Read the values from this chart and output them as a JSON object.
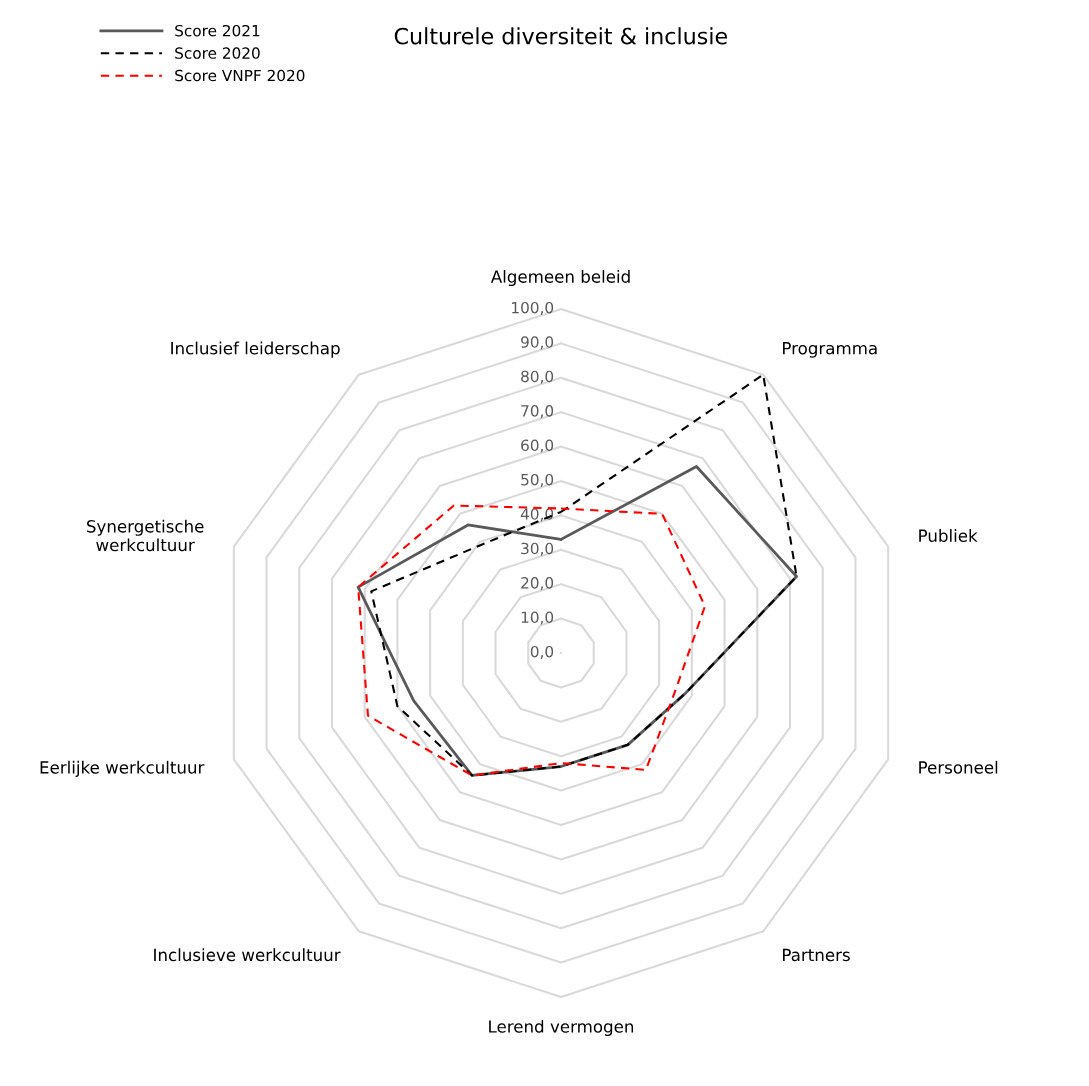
{
  "chart_data": {
    "type": "radar",
    "title": "Culturele diversiteit & inclusie",
    "categories": [
      "Algemeen beleid",
      "Programma",
      "Publiek",
      "Personeel",
      "Partners",
      "Lerend vermogen",
      "Inclusieve werkcultuur",
      "Eerlijke werkcultuur",
      "Synergetische werkcultuur",
      "Inclusief leiderschap"
    ],
    "series": [
      {
        "name": "Score 2021",
        "color": "#595959",
        "line_style": "solid",
        "values": [
          33,
          67,
          72,
          38,
          33,
          33,
          44,
          45,
          62,
          46
        ]
      },
      {
        "name": "Score 2020",
        "color": "#000000",
        "line_style": "dashed",
        "values": [
          41,
          100,
          72,
          38,
          33,
          33,
          44,
          50,
          58,
          39
        ]
      },
      {
        "name": "Score VNPF 2020",
        "color": "#ff0000",
        "line_style": "dashed",
        "values": [
          42,
          50,
          44,
          35,
          42,
          32,
          44,
          59,
          62,
          53
        ]
      }
    ],
    "ylim": [
      0,
      100
    ],
    "yticks": [
      {
        "value": 0,
        "label": "0,0"
      },
      {
        "value": 10,
        "label": "10,0"
      },
      {
        "value": 20,
        "label": "20,0"
      },
      {
        "value": 30,
        "label": "30,0"
      },
      {
        "value": 40,
        "label": "40,0"
      },
      {
        "value": 50,
        "label": "50,0"
      },
      {
        "value": 60,
        "label": "60,0"
      },
      {
        "value": 70,
        "label": "70,0"
      },
      {
        "value": 80,
        "label": "80,0"
      },
      {
        "value": 90,
        "label": "90,0"
      },
      {
        "value": 100,
        "label": "100,0"
      }
    ],
    "grid": true,
    "legend": "top left"
  }
}
